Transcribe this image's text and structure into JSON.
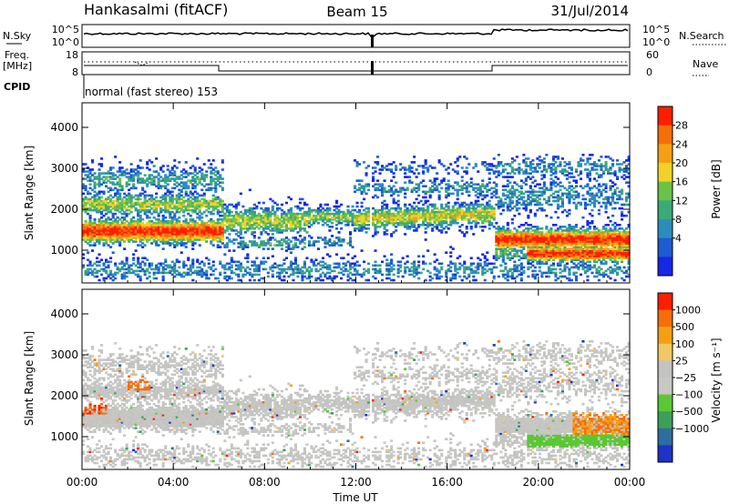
{
  "header": {
    "station": "Hankasalmi (fitACF)",
    "beam": "Beam 15",
    "date": "31/Jul/2014"
  },
  "strip": {
    "nsky_label": "N.Sky",
    "nsearch_label": "N.Search",
    "nsky_ticks": [
      "10^5",
      "10^0"
    ],
    "freq_label_1": "Freq.",
    "freq_label_2": "[MHz]",
    "freq_ticks": [
      "18",
      "8"
    ],
    "nave_label": "Nave",
    "nave_ticks": [
      "60",
      "0"
    ],
    "cpid_label": "CPID",
    "cpid_text": "normal (fast stereo) 153"
  },
  "chart_data": [
    {
      "type": "heatmap",
      "panel": "power",
      "ylabel": "Slant Range [km]",
      "yticks": [
        1000,
        2000,
        3000,
        4000
      ],
      "ylim": [
        200,
        4600
      ],
      "xlim": [
        0,
        24
      ],
      "colorbar_label": "Power [dB]",
      "colorbar_ticks": [
        "28",
        "24",
        "20",
        "16",
        "12",
        "8",
        "4"
      ],
      "colors": [
        "#1428e6",
        "#1e5ad2",
        "#2d8cbe",
        "#3caa78",
        "#69c346",
        "#f0d228",
        "#f5a014",
        "#f56e0a",
        "#ff1e00"
      ]
    },
    {
      "type": "heatmap",
      "panel": "velocity",
      "ylabel": "Slant Range [km]",
      "yticks": [
        1000,
        2000,
        3000,
        4000
      ],
      "ylim": [
        200,
        4600
      ],
      "xlim": [
        0,
        24
      ],
      "colorbar_label": "Velocity [m s⁻¹]",
      "colorbar_ticks": [
        "1000",
        "500",
        "100",
        "25",
        "−25",
        "−100",
        "−500",
        "−1000"
      ],
      "colors": [
        "#1e32c8",
        "#2d6ea0",
        "#3ca05a",
        "#5ac832",
        "#c8c8c3",
        "#c3c3c3",
        "#f0c864",
        "#f5a014",
        "#f56e0a",
        "#ff1e00"
      ]
    }
  ],
  "xaxis": {
    "ticks": [
      "00:00",
      "04:00",
      "08:00",
      "12:00",
      "16:00",
      "20:00",
      "00:00"
    ],
    "label": "Time UT"
  }
}
